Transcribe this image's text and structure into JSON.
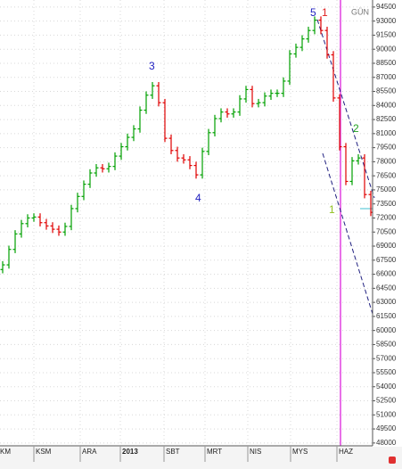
{
  "chart_data": {
    "type": "ohlc",
    "period_label": "GÜN",
    "up_color": "#00a000",
    "down_color": "#e00000",
    "grid": true,
    "ylim": [
      47700,
      95250
    ],
    "yticks": [
      48000,
      49500,
      51000,
      52500,
      54000,
      55500,
      57000,
      58500,
      60000,
      61500,
      63000,
      64500,
      66000,
      67500,
      69000,
      70500,
      72000,
      73500,
      75000,
      76500,
      78000,
      79500,
      81000,
      82500,
      84000,
      85500,
      87000,
      88500,
      90000,
      91500,
      93000,
      94500
    ],
    "x_labels": [
      "KM",
      "KSM",
      "ARA",
      "2013",
      "SBT",
      "MRT",
      "NIS",
      "MYS",
      "HAZ"
    ],
    "annotations": [
      {
        "text": "5",
        "color": "#2020c0"
      },
      {
        "text": "1",
        "color": "#e02020"
      },
      {
        "text": "3",
        "color": "#2020c0"
      },
      {
        "text": "4",
        "color": "#2020c0"
      },
      {
        "text": "2",
        "color": "#20a020"
      },
      {
        "text": "1",
        "color": "#90c020"
      }
    ],
    "open": [
      66500,
      67000,
      68650,
      70300,
      71400,
      72000,
      72100,
      71500,
      71150,
      70800,
      70500,
      71100,
      73000,
      74300,
      75600,
      76800,
      77350,
      77250,
      77500,
      78600,
      79600,
      80600,
      81500,
      83500,
      85100,
      86100,
      84300,
      80500,
      79200,
      78400,
      78200,
      77600,
      76600,
      79100,
      81100,
      82600,
      83300,
      83100,
      83300,
      84700,
      85700,
      84200,
      84300,
      85000,
      85300,
      85300,
      86600,
      89500,
      90200,
      91100,
      92000,
      93100,
      92000,
      89400,
      84800,
      79600,
      75900,
      78100,
      78400,
      74500
    ],
    "high": [
      67400,
      69050,
      70700,
      71800,
      72400,
      72500,
      72500,
      71900,
      71550,
      71200,
      71500,
      73400,
      74700,
      76000,
      77200,
      77750,
      77750,
      77900,
      79000,
      80000,
      81000,
      81900,
      83900,
      85500,
      86500,
      86500,
      84700,
      80900,
      79600,
      78800,
      78600,
      78000,
      79500,
      81500,
      83000,
      83700,
      83700,
      83700,
      85100,
      86100,
      86100,
      84700,
      85400,
      85700,
      85700,
      87000,
      89900,
      90600,
      91500,
      92400,
      93500,
      93500,
      92400,
      89800,
      85200,
      80000,
      78500,
      78800,
      78800,
      74900
    ],
    "low": [
      66100,
      66600,
      68250,
      69900,
      71000,
      71600,
      71100,
      70750,
      70400,
      70100,
      70100,
      70700,
      72600,
      73900,
      75200,
      76400,
      76850,
      76850,
      77100,
      78200,
      79200,
      80200,
      81100,
      83100,
      84700,
      83900,
      80100,
      78800,
      78000,
      77800,
      77200,
      76200,
      76200,
      78700,
      80700,
      82200,
      82700,
      82700,
      82900,
      84300,
      83800,
      83800,
      83900,
      84600,
      84900,
      84900,
      86200,
      89100,
      89800,
      90700,
      91600,
      91600,
      89000,
      84400,
      79200,
      75500,
      75500,
      77700,
      74100,
      72200
    ],
    "close": [
      67000,
      68650,
      70300,
      71400,
      72000,
      72100,
      71500,
      71150,
      70800,
      70500,
      71100,
      73000,
      74300,
      75600,
      76800,
      77350,
      77250,
      77500,
      78600,
      79600,
      80600,
      81500,
      83500,
      85100,
      86100,
      84300,
      80500,
      79200,
      78400,
      78200,
      77600,
      76600,
      79100,
      81100,
      82600,
      83300,
      83100,
      83300,
      84700,
      85700,
      84200,
      84300,
      85000,
      85300,
      85300,
      86600,
      89500,
      90200,
      91100,
      92000,
      93100,
      92000,
      89400,
      84800,
      79600,
      75900,
      78100,
      78400,
      74500,
      72600
    ]
  }
}
